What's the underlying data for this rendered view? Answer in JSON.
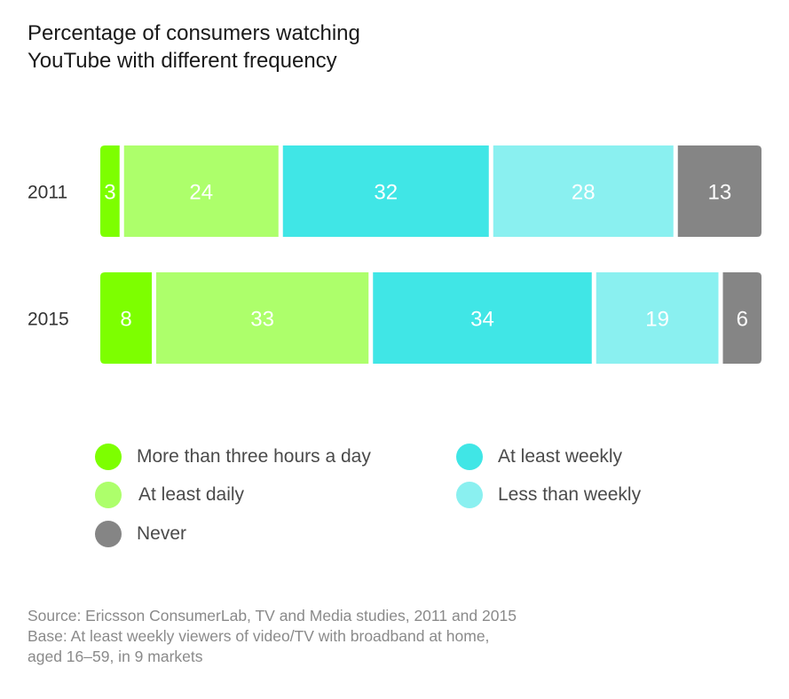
{
  "chart_data": {
    "type": "bar",
    "orientation": "horizontal",
    "stacked": true,
    "title": "Percentage of consumers watching YouTube with different frequency",
    "title_lines": [
      "Percentage of consumers watching",
      "YouTube with different frequency"
    ],
    "categories": [
      "2011",
      "2015"
    ],
    "series": [
      {
        "name": "More than three hours a day",
        "color": "#7dff00",
        "values": [
          3,
          8
        ]
      },
      {
        "name": "At least daily",
        "color": "#adff6b",
        "values": [
          24,
          33
        ]
      },
      {
        "name": "At least weekly",
        "color": "#40e6e6",
        "values": [
          32,
          34
        ]
      },
      {
        "name": "Less than weekly",
        "color": "#8af0f0",
        "values": [
          28,
          19
        ]
      },
      {
        "name": "Never",
        "color": "#858585",
        "values": [
          13,
          6
        ]
      }
    ],
    "xlabel": "",
    "ylabel": "",
    "xlim": [
      0,
      100
    ],
    "grid": false,
    "data_labels": true,
    "legend_position": "bottom"
  },
  "legend": [
    {
      "label": "More than three hours a day",
      "color": "#7dff00"
    },
    {
      "label": "At least daily",
      "color": "#adff6b"
    },
    {
      "label": "Never",
      "color": "#858585"
    },
    {
      "label": "At least weekly",
      "color": "#40e6e6"
    },
    {
      "label": "Less than weekly",
      "color": "#8af0f0"
    }
  ],
  "footer": {
    "source": "Source: Ericsson ConsumerLab, TV and Media studies, 2011 and 2015",
    "base_line1": "Base: At least weekly viewers of video/TV with broadband at home,",
    "base_line2": "aged 16–59, in 9 markets"
  }
}
